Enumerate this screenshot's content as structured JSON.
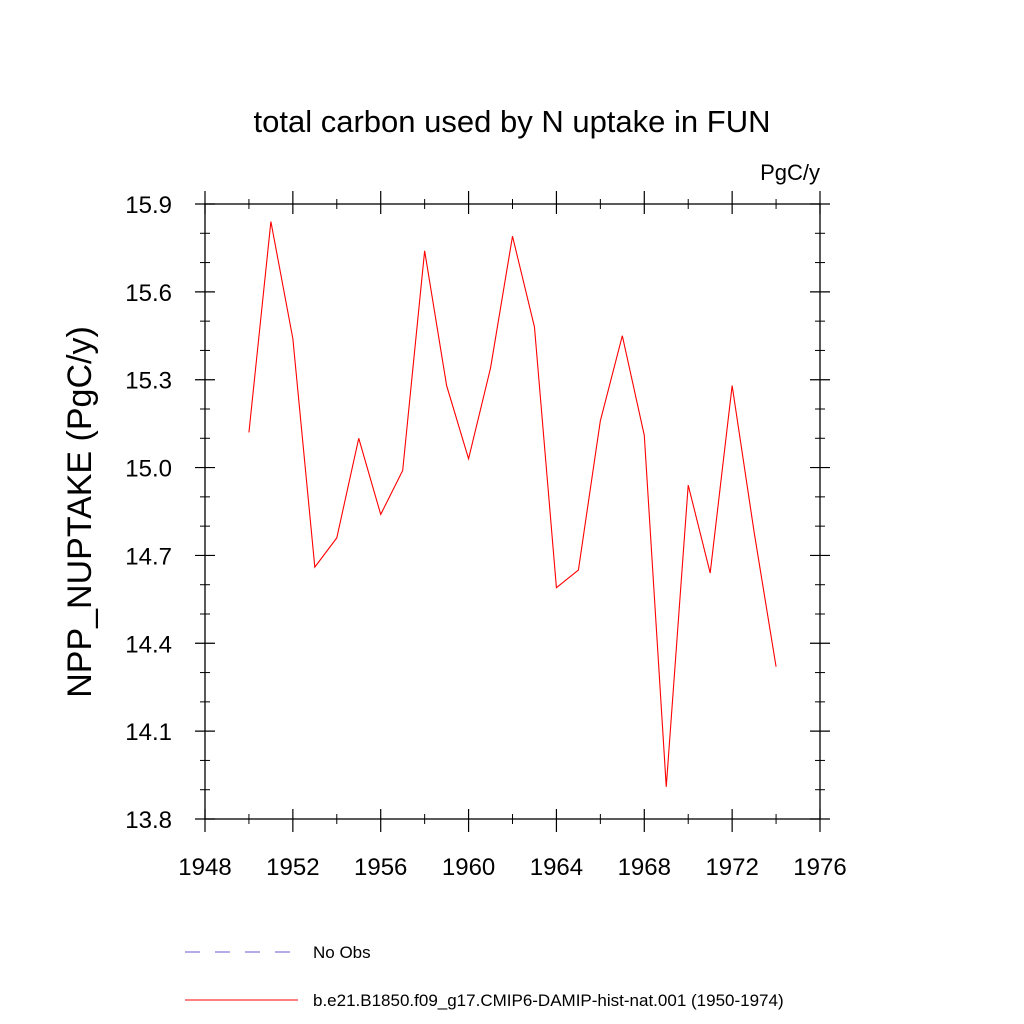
{
  "chart_data": {
    "type": "line",
    "title": "total carbon used by N uptake in FUN",
    "units_label": "PgC/y",
    "xlabel": "",
    "ylabel": "NPP_NUPTAKE  (PgC/y)",
    "xlim": [
      1948,
      1976
    ],
    "ylim": [
      13.8,
      15.9
    ],
    "xticks": [
      1948,
      1952,
      1956,
      1960,
      1964,
      1968,
      1972,
      1976
    ],
    "xtick_labels": [
      "1948",
      "1952",
      "1956",
      "1960",
      "1964",
      "1968",
      "1972",
      "1976"
    ],
    "yticks": [
      13.8,
      14.1,
      14.4,
      14.7,
      15.0,
      15.3,
      15.6,
      15.9
    ],
    "ytick_labels": [
      "13.8",
      "14.1",
      "14.4",
      "14.7",
      "15.0",
      "15.3",
      "15.6",
      "15.9"
    ],
    "grid": false,
    "legend_position": "bottom",
    "series": [
      {
        "name": "b.e21.B1850.f09_g17.CMIP6-DAMIP-hist-nat.001 (1950-1974)",
        "color": "#ff0000",
        "style": "solid",
        "x": [
          1950,
          1951,
          1952,
          1953,
          1954,
          1955,
          1956,
          1957,
          1958,
          1959,
          1960,
          1961,
          1962,
          1963,
          1964,
          1965,
          1966,
          1967,
          1968,
          1969,
          1970,
          1971,
          1972,
          1973,
          1974
        ],
        "values": [
          15.12,
          15.84,
          15.44,
          14.66,
          14.76,
          15.1,
          14.84,
          14.99,
          15.74,
          15.28,
          15.03,
          15.34,
          15.79,
          15.48,
          14.59,
          14.65,
          15.16,
          15.45,
          15.11,
          13.91,
          14.94,
          14.64,
          15.28,
          14.78,
          14.32
        ]
      }
    ],
    "legend": [
      {
        "name": "No Obs",
        "color": "#6a5acd",
        "style": "dashed"
      },
      {
        "name": "b.e21.B1850.f09_g17.CMIP6-DAMIP-hist-nat.001 (1950-1974)",
        "color": "#ff0000",
        "style": "solid"
      }
    ]
  }
}
